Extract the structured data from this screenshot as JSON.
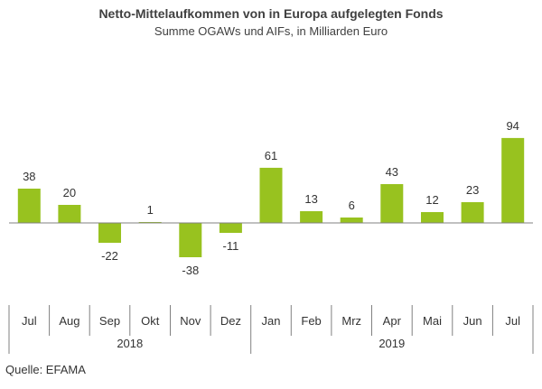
{
  "chart_data": {
    "type": "bar",
    "title": "Netto-Mittelaufkommen von in Europa aufgelegten Fonds",
    "subtitle": "Summe OGAWs und AIFs, in Milliarden Euro",
    "categories": [
      "Jul",
      "Aug",
      "Sep",
      "Okt",
      "Nov",
      "Dez",
      "Jan",
      "Feb",
      "Mrz",
      "Apr",
      "Mai",
      "Jun",
      "Jul"
    ],
    "values": [
      38,
      20,
      -22,
      1,
      -38,
      -11,
      61,
      13,
      6,
      43,
      12,
      23,
      94
    ],
    "years": [
      {
        "label": "2018",
        "from": 0,
        "to": 5
      },
      {
        "label": "2019",
        "from": 6,
        "to": 12
      }
    ],
    "xlabel": "",
    "ylabel": "",
    "grid": false,
    "legend": "none",
    "bar_color": "#98C21F"
  },
  "source": "Quelle: EFAMA"
}
